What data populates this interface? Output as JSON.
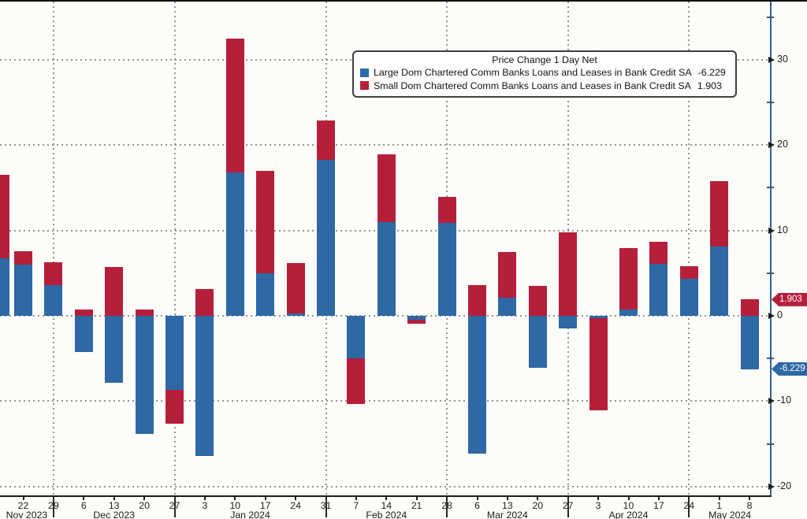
{
  "chart_data": {
    "type": "bar",
    "stacked": true,
    "title": "Price Change 1 Day Net",
    "categories": [
      "",
      "22",
      "29",
      "6",
      "13",
      "20",
      "27",
      "3",
      "10",
      "17",
      "24",
      "31",
      "7",
      "14",
      "21",
      "28",
      "6",
      "13",
      "20",
      "27",
      "3",
      "10",
      "17",
      "24",
      "1",
      "8"
    ],
    "series": [
      {
        "name": "Large Dom Chartered Comm Banks Loans and Leases in Bank Credit SA",
        "color": "#2e68a5",
        "last_value": "-6.229",
        "values": [
          6.7,
          6.0,
          3.6,
          -4.2,
          -7.8,
          -13.8,
          -8.7,
          -16.4,
          16.8,
          5.0,
          0.3,
          18.3,
          -5.0,
          11.0,
          -0.5,
          10.9,
          -16.1,
          2.1,
          -6.1,
          -1.5,
          -0.3,
          0.7,
          6.1,
          4.3,
          8.1,
          -6.229
        ]
      },
      {
        "name": "Small Dom Chartered Comm Banks Loans and Leases in Bank Credit SA",
        "color": "#b51f3a",
        "last_value": "1.903",
        "values": [
          9.8,
          1.6,
          2.7,
          0.7,
          5.7,
          0.7,
          -3.9,
          3.1,
          15.7,
          12.0,
          5.9,
          4.6,
          -5.3,
          7.9,
          -0.4,
          3.0,
          3.6,
          5.4,
          3.5,
          9.8,
          -10.8,
          7.2,
          2.6,
          1.5,
          7.7,
          1.903
        ]
      }
    ],
    "month_labels": [
      "Nov 2023",
      "Dec 2023",
      "Jan 2024",
      "Feb 2024",
      "Mar 2024",
      "Apr 2024",
      "May 2024"
    ],
    "month_gridline_indices": [
      2,
      6,
      11,
      15,
      19,
      23
    ],
    "y_ticks": [
      "30",
      "20",
      "10",
      "0",
      "-10",
      "-20"
    ],
    "y_tick_values": [
      30,
      20,
      10,
      0,
      -10,
      -20
    ],
    "minor_y_tick_values": [
      35,
      25,
      15,
      5,
      -5,
      -15
    ],
    "ylim": [
      -21,
      37
    ],
    "grid": "dotted",
    "legend_position": "top-center",
    "axis_color": "#30638c"
  },
  "legend": {
    "title": "Price Change 1 Day Net",
    "entries": [
      {
        "label": "Large Dom Chartered Comm Banks Loans and Leases in Bank Credit SA",
        "value": "-6.229"
      },
      {
        "label": "Small Dom Chartered Comm Banks Loans and Leases in Bank Credit SA",
        "value": "1.903"
      }
    ]
  },
  "axis_badges": [
    {
      "text": "1.903",
      "color": "#b51f3a",
      "value": 1.903
    },
    {
      "text": "-6.229",
      "color": "#2e68a5",
      "value": -6.229
    }
  ]
}
